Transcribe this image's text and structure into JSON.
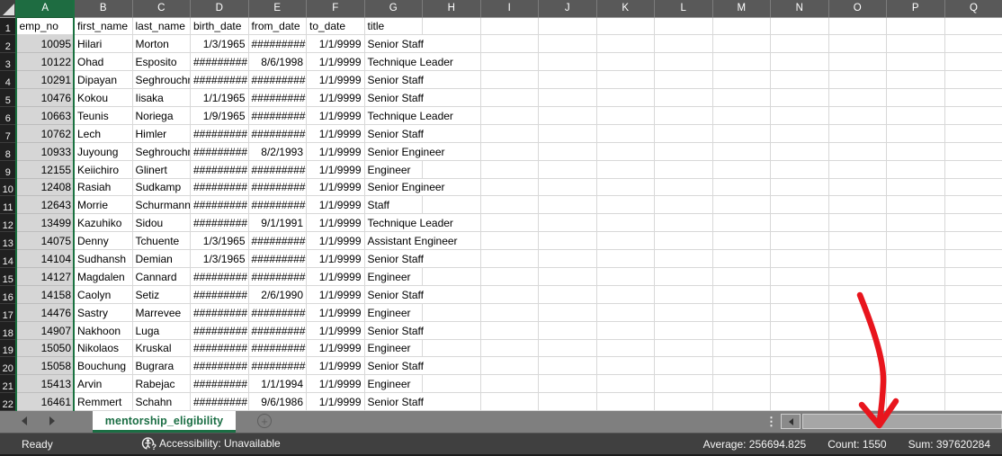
{
  "spreadsheet": {
    "column_letters": [
      "A",
      "B",
      "C",
      "D",
      "E",
      "F",
      "G",
      "H",
      "I",
      "J",
      "K",
      "L",
      "M",
      "N",
      "O",
      "P",
      "Q"
    ],
    "selected_column": "A",
    "header_row": [
      "emp_no",
      "first_name",
      "last_name",
      "birth_date",
      "from_date",
      "to_date",
      "title"
    ],
    "rows": [
      [
        "10095",
        "Hilari",
        "Morton",
        "1/3/1965",
        "#########",
        "1/1/9999",
        "Senior Staff"
      ],
      [
        "10122",
        "Ohad",
        "Esposito",
        "#########",
        "8/6/1998",
        "1/1/9999",
        "Technique Leader"
      ],
      [
        "10291",
        "Dipayan",
        "Seghrouchni",
        "#########",
        "#########",
        "1/1/9999",
        "Senior Staff"
      ],
      [
        "10476",
        "Kokou",
        "Iisaka",
        "1/1/1965",
        "#########",
        "1/1/9999",
        "Senior Staff"
      ],
      [
        "10663",
        "Teunis",
        "Noriega",
        "1/9/1965",
        "#########",
        "1/1/9999",
        "Technique Leader"
      ],
      [
        "10762",
        "Lech",
        "Himler",
        "#########",
        "#########",
        "1/1/9999",
        "Senior Staff"
      ],
      [
        "10933",
        "Juyoung",
        "Seghrouchni",
        "#########",
        "8/2/1993",
        "1/1/9999",
        "Senior Engineer"
      ],
      [
        "12155",
        "Keiichiro",
        "Glinert",
        "#########",
        "#########",
        "1/1/9999",
        "Engineer"
      ],
      [
        "12408",
        "Rasiah",
        "Sudkamp",
        "#########",
        "#########",
        "1/1/9999",
        "Senior Engineer"
      ],
      [
        "12643",
        "Morrie",
        "Schurmann",
        "#########",
        "#########",
        "1/1/9999",
        "Staff"
      ],
      [
        "13499",
        "Kazuhiko",
        "Sidou",
        "#########",
        "9/1/1991",
        "1/1/9999",
        "Technique Leader"
      ],
      [
        "14075",
        "Denny",
        "Tchuente",
        "1/3/1965",
        "#########",
        "1/1/9999",
        "Assistant Engineer"
      ],
      [
        "14104",
        "Sudhansh",
        "Demian",
        "1/3/1965",
        "#########",
        "1/1/9999",
        "Senior Staff"
      ],
      [
        "14127",
        "Magdalen",
        "Cannard",
        "#########",
        "#########",
        "1/1/9999",
        "Engineer"
      ],
      [
        "14158",
        "Caolyn",
        "Setiz",
        "#########",
        "2/6/1990",
        "1/1/9999",
        "Senior Staff"
      ],
      [
        "14476",
        "Sastry",
        "Marrevee",
        "#########",
        "#########",
        "1/1/9999",
        "Engineer"
      ],
      [
        "14907",
        "Nakhoon",
        "Luga",
        "#########",
        "#########",
        "1/1/9999",
        "Senior Staff"
      ],
      [
        "15050",
        "Nikolaos",
        "Kruskal",
        "#########",
        "#########",
        "1/1/9999",
        "Engineer"
      ],
      [
        "15058",
        "Bouchung",
        "Bugrara",
        "#########",
        "#########",
        "1/1/9999",
        "Senior Staff"
      ],
      [
        "15413",
        "Arvin",
        "Rabejac",
        "#########",
        "1/1/1994",
        "1/1/9999",
        "Engineer"
      ],
      [
        "16461",
        "Remmert",
        "Schahn",
        "#########",
        "9/6/1986",
        "1/1/9999",
        "Senior Staff"
      ]
    ],
    "colors": {
      "selected_header_bg": "#1e6c41",
      "selection_fill": "#d6d6d6",
      "selection_border": "#1a7240",
      "column_header_bg": "#595959",
      "row_header_bg": "#202020",
      "gridline": "#d8d8d8"
    }
  },
  "sheet_tab_bar": {
    "active_tab": "mentorship_eligibility",
    "add_sheet_label": "+",
    "more_dots": "⋮",
    "tab_text_color": "#1b6e44"
  },
  "status_bar": {
    "mode": "Ready",
    "accessibility": "Accessibility: Unavailable",
    "stats": {
      "average": "Average: 256694.825",
      "count": "Count: 1550",
      "sum": "Sum: 397620284"
    }
  },
  "annotation": {
    "type": "hand-drawn-arrow",
    "color": "#e8151d",
    "target": "Count: 1550"
  }
}
